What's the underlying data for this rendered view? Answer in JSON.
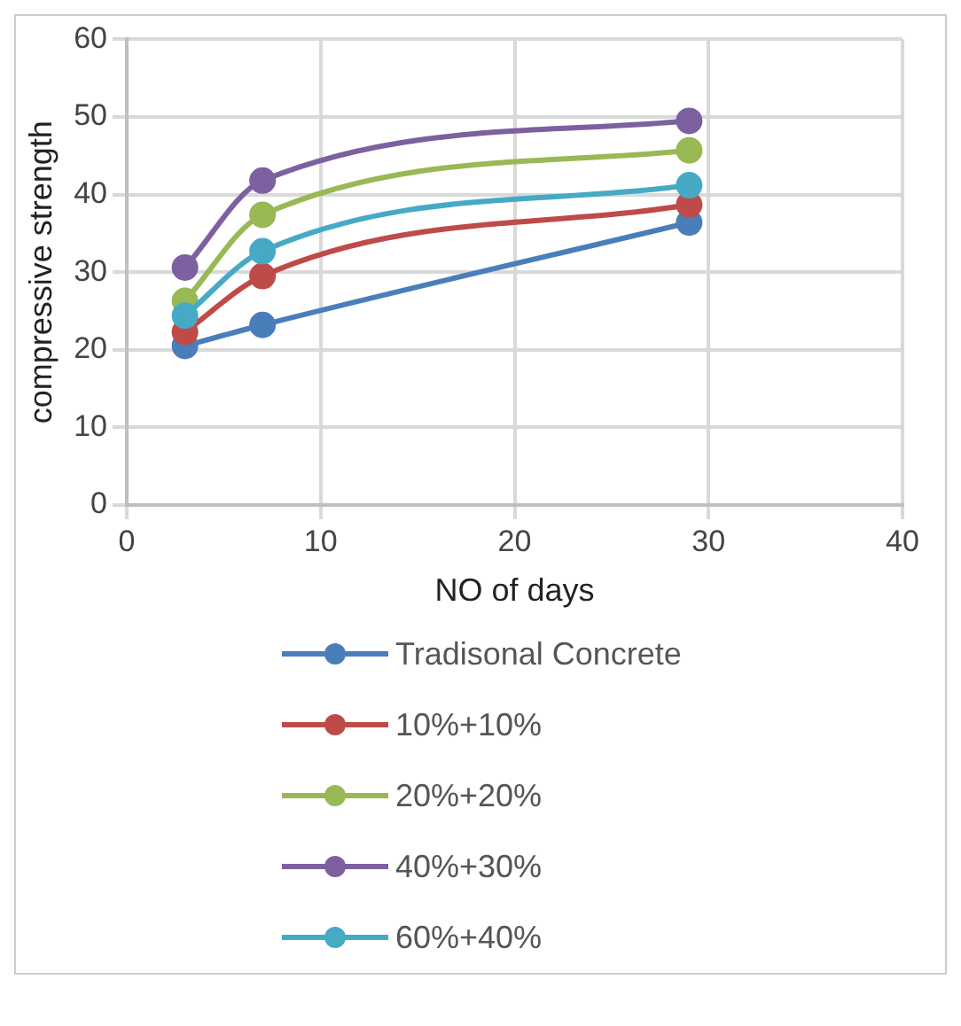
{
  "chart_data": {
    "type": "line",
    "xlabel": "NO of days",
    "ylabel": "compressive strength",
    "x": [
      3,
      7,
      29
    ],
    "series": [
      {
        "name": "Tradisonal Concrete",
        "color": "#4a7ebb",
        "values": [
          20.5,
          23.2,
          36.4
        ]
      },
      {
        "name": "10%+10%",
        "color": "#be4b48",
        "values": [
          22.3,
          29.5,
          38.7
        ]
      },
      {
        "name": "20%+20%",
        "color": "#98b954",
        "values": [
          26.3,
          37.4,
          45.7
        ]
      },
      {
        "name": "40%+30%",
        "color": "#7d60a0",
        "values": [
          30.6,
          41.8,
          49.5
        ]
      },
      {
        "name": "60%+40%",
        "color": "#46aac5",
        "values": [
          24.4,
          32.7,
          41.2
        ]
      }
    ],
    "xlim": [
      0,
      40
    ],
    "xticks": [
      0,
      10,
      20,
      30,
      40
    ],
    "ylim": [
      0,
      60
    ],
    "yticks": [
      0,
      10,
      20,
      30,
      40,
      50,
      60
    ],
    "grid": true,
    "legend": "bottom",
    "marker": "circle",
    "line_style": "solid"
  }
}
